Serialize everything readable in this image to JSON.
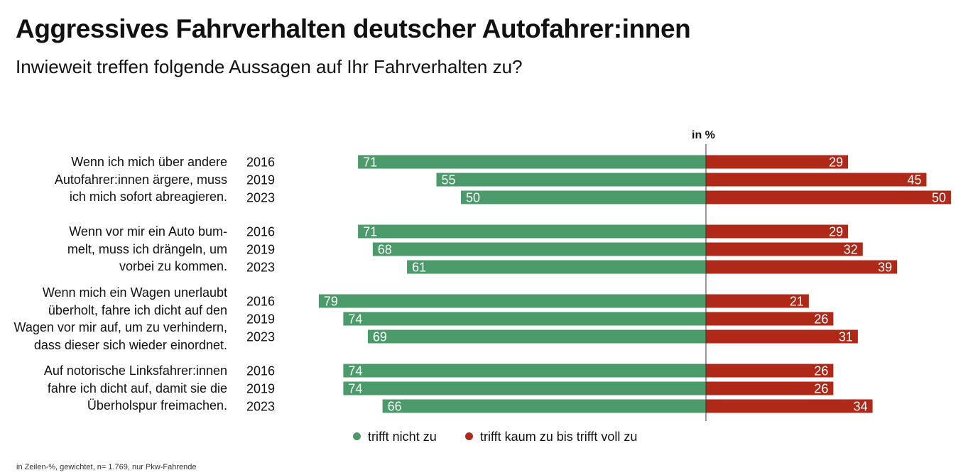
{
  "chart_data": {
    "type": "bar",
    "orientation": "horizontal-diverging",
    "title": "Aggressives Fahrverhalten deutscher Autofahrer:innen",
    "subtitle": "Inwieweit treffen folgende Aussagen auf Ihr Fahrverhalten zu?",
    "unit": "in %",
    "footnote": "in Zeilen-%, gewichtet, n= 1.769, nur Pkw-Fahrende",
    "legend_position": "bottom",
    "series": [
      {
        "name": "trifft nicht zu",
        "color": "#4a9a6a",
        "side": "left"
      },
      {
        "name": "trifft kaum zu bis trifft voll zu",
        "color": "#b02818",
        "side": "right"
      }
    ],
    "groups": [
      {
        "label": "Wenn ich mich über andere Autofahrer:innen ärgere, muss ich mich sofort abreagieren.",
        "rows": [
          {
            "year": "2016",
            "values": [
              71,
              29
            ]
          },
          {
            "year": "2019",
            "values": [
              55,
              45
            ]
          },
          {
            "year": "2023",
            "values": [
              50,
              50
            ]
          }
        ]
      },
      {
        "label": "Wenn vor mir ein Auto bummelt, muss ich drängeln, um vorbei zu kommen.",
        "rows": [
          {
            "year": "2016",
            "values": [
              71,
              29
            ]
          },
          {
            "year": "2019",
            "values": [
              68,
              32
            ]
          },
          {
            "year": "2023",
            "values": [
              61,
              39
            ]
          }
        ]
      },
      {
        "label": "Wenn mich ein Wagen unerlaubt überholt, fahre ich dicht auf den Wagen vor mir auf, um zu verhindern, dass dieser sich wieder einordnet.",
        "rows": [
          {
            "year": "2016",
            "values": [
              79,
              21
            ]
          },
          {
            "year": "2019",
            "values": [
              74,
              26
            ]
          },
          {
            "year": "2023",
            "values": [
              69,
              31
            ]
          }
        ]
      },
      {
        "label": "Auf notorische Linksfahrer:innen fahre ich dicht auf, damit sie die Überholspur freimachen.",
        "rows": [
          {
            "year": "2016",
            "values": [
              74,
              26
            ]
          },
          {
            "year": "2019",
            "values": [
              74,
              26
            ]
          },
          {
            "year": "2023",
            "values": [
              66,
              34
            ]
          }
        ]
      }
    ]
  }
}
